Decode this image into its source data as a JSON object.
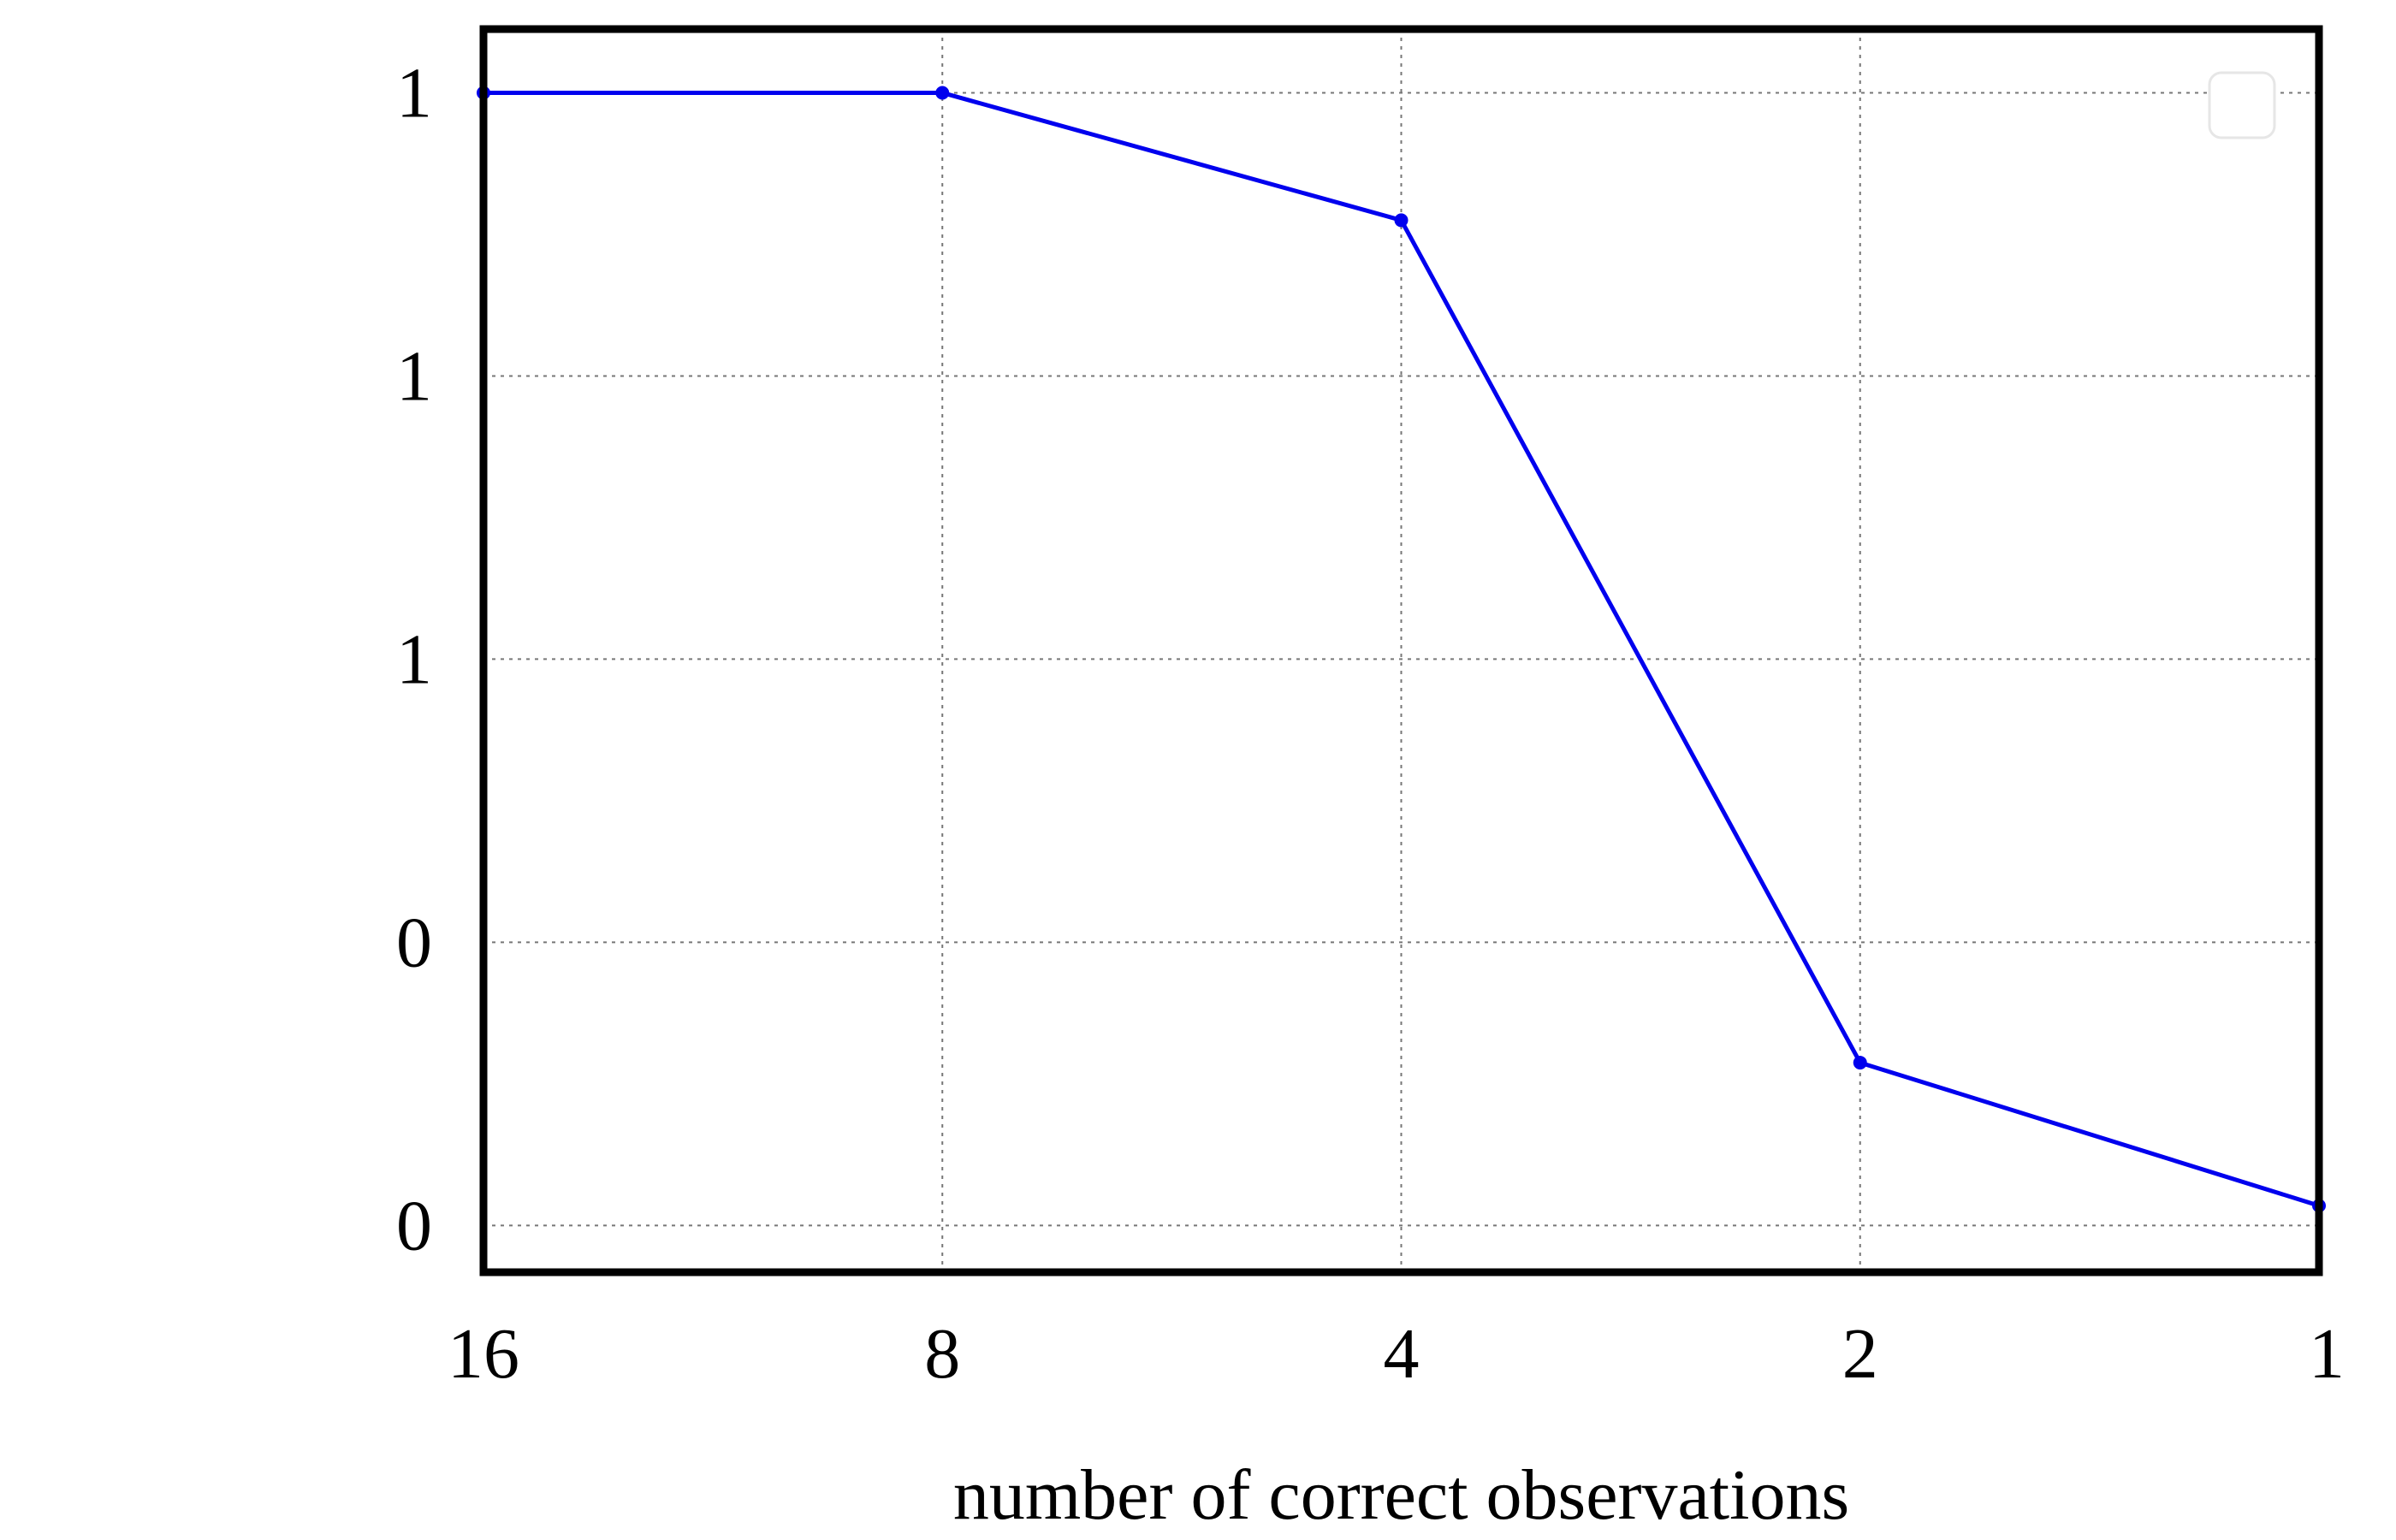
{
  "chart_data": {
    "type": "line",
    "title": "",
    "xlabel": "number of correct observations",
    "ylabel": "",
    "x_scale": "log2-reversed",
    "x_ticks": [
      16,
      8,
      4,
      2,
      1
    ],
    "x_tick_labels": [
      "16",
      "8",
      "4",
      "2",
      "1"
    ],
    "xlim": [
      16,
      1
    ],
    "y_ticks": [
      0.2,
      0.4,
      0.6,
      0.8,
      1.0
    ],
    "y_tick_labels": [
      "0",
      "0",
      "1",
      "1",
      "1"
    ],
    "ylim": [
      0.167,
      1.045
    ],
    "grid": true,
    "legend": {
      "placement": "top-right",
      "entries": []
    },
    "series": [
      {
        "color": "#0000ee",
        "x": [
          16,
          8,
          4,
          2,
          1
        ],
        "y": [
          1.0,
          1.0,
          0.91,
          0.315,
          0.214
        ]
      }
    ]
  }
}
